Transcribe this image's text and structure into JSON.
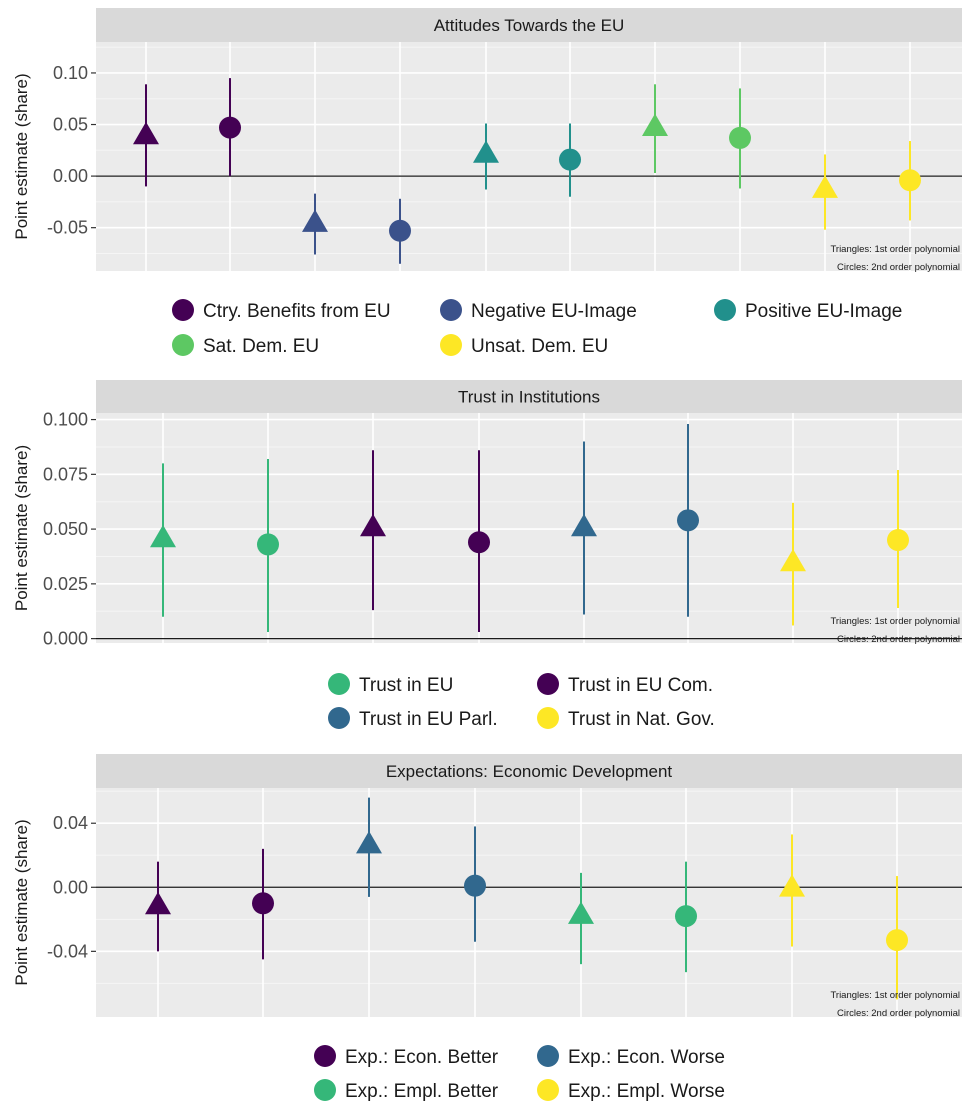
{
  "chart_data": [
    {
      "type": "scatter",
      "title": "Attitudes Towards the EU",
      "ylabel": "Point estimate (share)",
      "xlabel": "",
      "ylim": [
        -0.092,
        0.13
      ],
      "yticks": [
        -0.05,
        0.0,
        0.05,
        0.1
      ],
      "ytick_labels": [
        "-0.05",
        "0.00",
        "0.05",
        "0.10"
      ],
      "grid": true,
      "legend_position": "bottom",
      "note_lines": [
        "Triangles: 1st order polynomial",
        "Circles: 2nd order polynomial"
      ],
      "legend": [
        {
          "label": "Ctry. Benefits from EU",
          "color": "#440154"
        },
        {
          "label": "Negative EU-Image",
          "color": "#3B528B"
        },
        {
          "label": "Positive EU-Image",
          "color": "#21908C"
        },
        {
          "label": "Sat. Dem. EU",
          "color": "#5DC863"
        },
        {
          "label": "Unsat. Dem. EU",
          "color": "#FDE725"
        }
      ],
      "points": [
        {
          "series": "Ctry. Benefits from EU",
          "shape": "triangle",
          "y": 0.04,
          "ci": [
            -0.01,
            0.089
          ]
        },
        {
          "series": "Ctry. Benefits from EU",
          "shape": "circle",
          "y": 0.047,
          "ci": [
            0.0,
            0.095
          ]
        },
        {
          "series": "Negative EU-Image",
          "shape": "triangle",
          "y": -0.045,
          "ci": [
            -0.076,
            -0.017
          ]
        },
        {
          "series": "Negative EU-Image",
          "shape": "circle",
          "y": -0.053,
          "ci": [
            -0.085,
            -0.022
          ]
        },
        {
          "series": "Positive EU-Image",
          "shape": "triangle",
          "y": 0.022,
          "ci": [
            -0.013,
            0.051
          ]
        },
        {
          "series": "Positive EU-Image",
          "shape": "circle",
          "y": 0.016,
          "ci": [
            -0.02,
            0.051
          ]
        },
        {
          "series": "Sat. Dem. EU",
          "shape": "triangle",
          "y": 0.048,
          "ci": [
            0.003,
            0.089
          ]
        },
        {
          "series": "Sat. Dem. EU",
          "shape": "circle",
          "y": 0.037,
          "ci": [
            -0.012,
            0.085
          ]
        },
        {
          "series": "Unsat. Dem. EU",
          "shape": "triangle",
          "y": -0.012,
          "ci": [
            -0.052,
            0.021
          ]
        },
        {
          "series": "Unsat. Dem. EU",
          "shape": "circle",
          "y": -0.004,
          "ci": [
            -0.043,
            0.034
          ]
        }
      ]
    },
    {
      "type": "scatter",
      "title": "Trust in Institutions",
      "ylabel": "Point estimate (share)",
      "xlabel": "",
      "ylim": [
        -0.002,
        0.103
      ],
      "yticks": [
        0.0,
        0.025,
        0.05,
        0.075,
        0.1
      ],
      "ytick_labels": [
        "0.000",
        "0.025",
        "0.050",
        "0.075",
        "0.100"
      ],
      "grid": true,
      "legend_position": "bottom",
      "note_lines": [
        "Triangles: 1st order polynomial",
        "Circles: 2nd order polynomial"
      ],
      "legend": [
        {
          "label": "Trust in EU",
          "color": "#35B779"
        },
        {
          "label": "Trust in EU Com.",
          "color": "#440154"
        },
        {
          "label": "Trust in EU Parl.",
          "color": "#31688E"
        },
        {
          "label": "Trust in Nat. Gov.",
          "color": "#FDE725"
        }
      ],
      "points": [
        {
          "series": "Trust in EU",
          "shape": "triangle",
          "y": 0.046,
          "ci": [
            0.01,
            0.08
          ]
        },
        {
          "series": "Trust in EU",
          "shape": "circle",
          "y": 0.043,
          "ci": [
            0.003,
            0.082
          ]
        },
        {
          "series": "Trust in EU Com.",
          "shape": "triangle",
          "y": 0.051,
          "ci": [
            0.013,
            0.086
          ]
        },
        {
          "series": "Trust in EU Com.",
          "shape": "circle",
          "y": 0.044,
          "ci": [
            0.003,
            0.086
          ]
        },
        {
          "series": "Trust in EU Parl.",
          "shape": "triangle",
          "y": 0.051,
          "ci": [
            0.011,
            0.09
          ]
        },
        {
          "series": "Trust in EU Parl.",
          "shape": "circle",
          "y": 0.054,
          "ci": [
            0.01,
            0.098
          ]
        },
        {
          "series": "Trust in Nat. Gov.",
          "shape": "triangle",
          "y": 0.035,
          "ci": [
            0.006,
            0.062
          ]
        },
        {
          "series": "Trust in Nat. Gov.",
          "shape": "circle",
          "y": 0.045,
          "ci": [
            0.014,
            0.077
          ]
        }
      ]
    },
    {
      "type": "scatter",
      "title": "Expectations: Economic Development",
      "ylabel": "Point estimate (share)",
      "xlabel": "",
      "ylim": [
        -0.081,
        0.062
      ],
      "yticks": [
        -0.04,
        0.0,
        0.04
      ],
      "ytick_labels": [
        "-0.04",
        "0.00",
        "0.04"
      ],
      "grid": true,
      "legend_position": "bottom",
      "note_lines": [
        "Triangles: 1st order polynomial",
        "Circles: 2nd order polynomial"
      ],
      "legend": [
        {
          "label": "Exp.: Econ. Better",
          "color": "#440154"
        },
        {
          "label": "Exp.: Econ. Worse",
          "color": "#31688E"
        },
        {
          "label": "Exp.: Empl. Better",
          "color": "#35B779"
        },
        {
          "label": "Exp.: Empl. Worse",
          "color": "#FDE725"
        }
      ],
      "points": [
        {
          "series": "Exp.: Econ. Better",
          "shape": "triangle",
          "y": -0.011,
          "ci": [
            -0.04,
            0.016
          ]
        },
        {
          "series": "Exp.: Econ. Better",
          "shape": "circle",
          "y": -0.01,
          "ci": [
            -0.045,
            0.024
          ]
        },
        {
          "series": "Exp.: Econ. Worse",
          "shape": "triangle",
          "y": 0.027,
          "ci": [
            -0.006,
            0.056
          ]
        },
        {
          "series": "Exp.: Econ. Worse",
          "shape": "circle",
          "y": 0.001,
          "ci": [
            -0.034,
            0.038
          ]
        },
        {
          "series": "Exp.: Empl. Better",
          "shape": "triangle",
          "y": -0.017,
          "ci": [
            -0.048,
            0.009
          ]
        },
        {
          "series": "Exp.: Empl. Better",
          "shape": "circle",
          "y": -0.018,
          "ci": [
            -0.053,
            0.016
          ]
        },
        {
          "series": "Exp.: Empl. Worse",
          "shape": "triangle",
          "y": 0.0,
          "ci": [
            -0.037,
            0.033
          ]
        },
        {
          "series": "Exp.: Empl. Worse",
          "shape": "circle",
          "y": -0.033,
          "ci": [
            -0.07,
            0.007
          ]
        }
      ]
    }
  ]
}
